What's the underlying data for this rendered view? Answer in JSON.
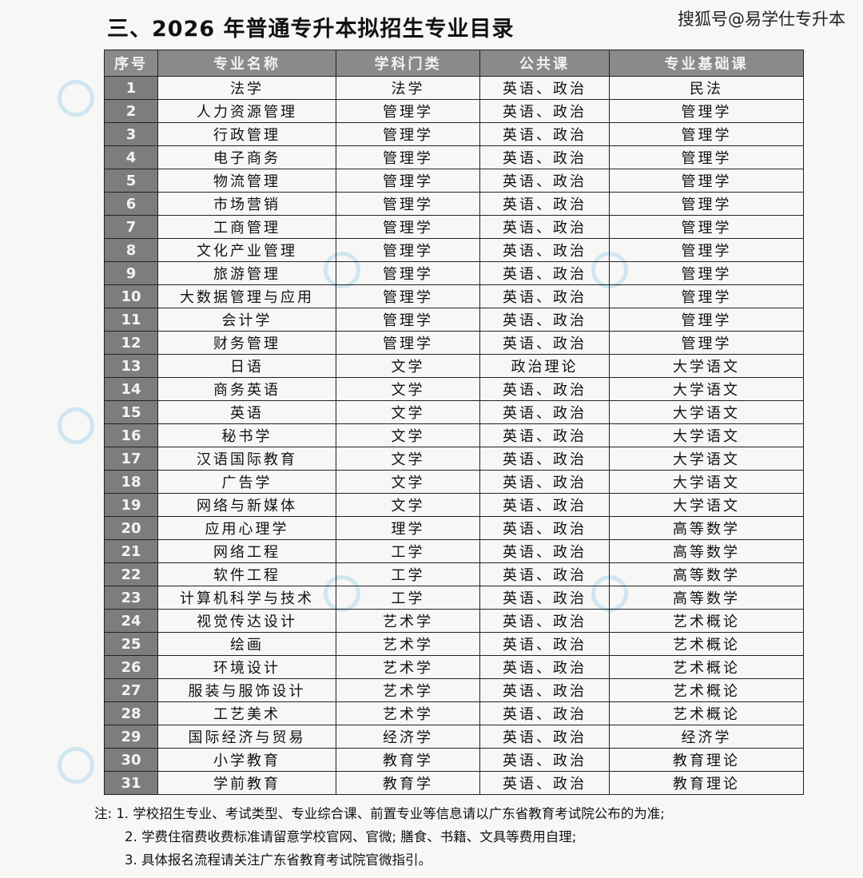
{
  "title": "三、2026 年普通专升本拟招生专业目录",
  "source_label": "搜狐号@易学仕专升本",
  "table": {
    "headers": [
      "序号",
      "专业名称",
      "学科门类",
      "公共课",
      "专业基础课"
    ],
    "rows": [
      [
        "1",
        "法学",
        "法学",
        "英语、政治",
        "民法"
      ],
      [
        "2",
        "人力资源管理",
        "管理学",
        "英语、政治",
        "管理学"
      ],
      [
        "3",
        "行政管理",
        "管理学",
        "英语、政治",
        "管理学"
      ],
      [
        "4",
        "电子商务",
        "管理学",
        "英语、政治",
        "管理学"
      ],
      [
        "5",
        "物流管理",
        "管理学",
        "英语、政治",
        "管理学"
      ],
      [
        "6",
        "市场营销",
        "管理学",
        "英语、政治",
        "管理学"
      ],
      [
        "7",
        "工商管理",
        "管理学",
        "英语、政治",
        "管理学"
      ],
      [
        "8",
        "文化产业管理",
        "管理学",
        "英语、政治",
        "管理学"
      ],
      [
        "9",
        "旅游管理",
        "管理学",
        "英语、政治",
        "管理学"
      ],
      [
        "10",
        "大数据管理与应用",
        "管理学",
        "英语、政治",
        "管理学"
      ],
      [
        "11",
        "会计学",
        "管理学",
        "英语、政治",
        "管理学"
      ],
      [
        "12",
        "财务管理",
        "管理学",
        "英语、政治",
        "管理学"
      ],
      [
        "13",
        "日语",
        "文学",
        "政治理论",
        "大学语文"
      ],
      [
        "14",
        "商务英语",
        "文学",
        "英语、政治",
        "大学语文"
      ],
      [
        "15",
        "英语",
        "文学",
        "英语、政治",
        "大学语文"
      ],
      [
        "16",
        "秘书学",
        "文学",
        "英语、政治",
        "大学语文"
      ],
      [
        "17",
        "汉语国际教育",
        "文学",
        "英语、政治",
        "大学语文"
      ],
      [
        "18",
        "广告学",
        "文学",
        "英语、政治",
        "大学语文"
      ],
      [
        "19",
        "网络与新媒体",
        "文学",
        "英语、政治",
        "大学语文"
      ],
      [
        "20",
        "应用心理学",
        "理学",
        "英语、政治",
        "高等数学"
      ],
      [
        "21",
        "网络工程",
        "工学",
        "英语、政治",
        "高等数学"
      ],
      [
        "22",
        "软件工程",
        "工学",
        "英语、政治",
        "高等数学"
      ],
      [
        "23",
        "计算机科学与技术",
        "工学",
        "英语、政治",
        "高等数学"
      ],
      [
        "24",
        "视觉传达设计",
        "艺术学",
        "英语、政治",
        "艺术概论"
      ],
      [
        "25",
        "绘画",
        "艺术学",
        "英语、政治",
        "艺术概论"
      ],
      [
        "26",
        "环境设计",
        "艺术学",
        "英语、政治",
        "艺术概论"
      ],
      [
        "27",
        "服装与服饰设计",
        "艺术学",
        "英语、政治",
        "艺术概论"
      ],
      [
        "28",
        "工艺美术",
        "艺术学",
        "英语、政治",
        "艺术概论"
      ],
      [
        "29",
        "国际经济与贸易",
        "经济学",
        "英语、政治",
        "经济学"
      ],
      [
        "30",
        "小学教育",
        "教育学",
        "英语、政治",
        "教育理论"
      ],
      [
        "31",
        "学前教育",
        "教育学",
        "英语、政治",
        "教育理论"
      ]
    ]
  },
  "notes": {
    "label": "注:",
    "items": [
      "1. 学校招生专业、考试类型、专业综合课、前置专业等信息请以广东省教育考试院公布的为准;",
      "2. 学费住宿费收费标准请留意学校官网、官微; 膳食、书籍、文具等费用自理;",
      "3. 具体报名流程请关注广东省教育考试院官微指引。"
    ]
  }
}
